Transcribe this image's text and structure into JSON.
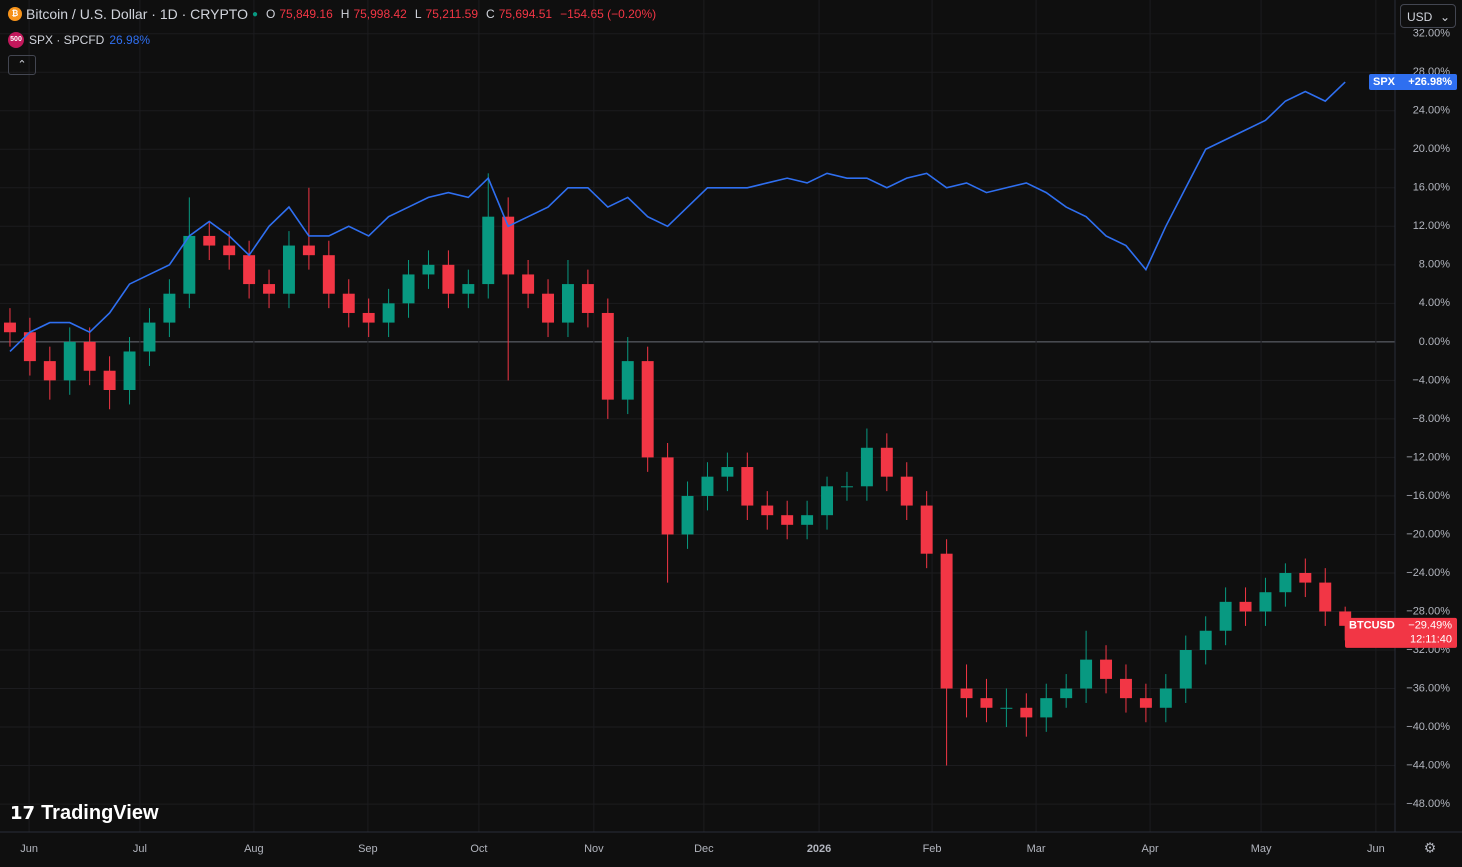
{
  "chart_data": {
    "type": "candlestick",
    "title": "Bitcoin / U.S. Dollar · 1D · CRYPTO",
    "ohlc_labels": {
      "open_key": "O",
      "open": "75,849.16",
      "high_key": "H",
      "high": "75,998.42",
      "low_key": "L",
      "low": "75,211.59",
      "close_key": "C",
      "close": "75,694.51",
      "change": "−154.65 (−0.20%)"
    },
    "symbol_icon": "₿",
    "currency": "USD",
    "brand": "TradingView",
    "countdown": "12:11:40",
    "xlim": [
      -0.5,
      69.5
    ],
    "xticks": [
      {
        "value": 0.96,
        "label": "Jun"
      },
      {
        "value": 6.52,
        "label": "Jul"
      },
      {
        "value": 12.24,
        "label": "Aug"
      },
      {
        "value": 17.96,
        "label": "Sep"
      },
      {
        "value": 23.53,
        "label": "Oct"
      },
      {
        "value": 29.3,
        "label": "Nov"
      },
      {
        "value": 34.82,
        "label": "Dec"
      },
      {
        "value": 40.6,
        "label": "2026"
      },
      {
        "value": 46.27,
        "label": "Feb"
      },
      {
        "value": 51.49,
        "label": "Mar"
      },
      {
        "value": 57.21,
        "label": "Apr"
      },
      {
        "value": 62.78,
        "label": "May"
      },
      {
        "value": 68.54,
        "label": "Jun"
      }
    ],
    "ylim": [
      -50.9,
      35.5
    ],
    "yticks": [
      {
        "value": 32,
        "label": "32.00%"
      },
      {
        "value": 28,
        "label": "28.00%"
      },
      {
        "value": 24,
        "label": "24.00%"
      },
      {
        "value": 20,
        "label": "20.00%"
      },
      {
        "value": 16,
        "label": "16.00%"
      },
      {
        "value": 12,
        "label": "12.00%"
      },
      {
        "value": 8,
        "label": "8.00%"
      },
      {
        "value": 4,
        "label": "4.00%"
      },
      {
        "value": 0,
        "label": "0.00%"
      },
      {
        "value": -4,
        "label": "−4.00%"
      },
      {
        "value": -8,
        "label": "−8.00%"
      },
      {
        "value": -12,
        "label": "−12.00%"
      },
      {
        "value": -16,
        "label": "−16.00%"
      },
      {
        "value": -20,
        "label": "−20.00%"
      },
      {
        "value": -24,
        "label": "−24.00%"
      },
      {
        "value": -28,
        "label": "−28.00%"
      },
      {
        "value": -32,
        "label": "−32.00%"
      },
      {
        "value": -36,
        "label": "−36.00%"
      },
      {
        "value": -40,
        "label": "−40.00%"
      },
      {
        "value": -44,
        "label": "−44.00%"
      },
      {
        "value": -48,
        "label": "−48.00%"
      }
    ],
    "grid": true,
    "candles": {
      "name": "BTCUSD",
      "up_color": "#089981",
      "down_color": "#f23645",
      "open": [
        2,
        1,
        -2,
        -4,
        0,
        -3,
        -5,
        -1,
        2,
        5,
        11,
        10,
        9,
        6,
        5,
        10,
        9,
        5,
        3,
        2,
        4,
        7,
        8,
        5,
        6,
        13,
        7,
        5,
        2,
        6,
        3,
        -6,
        -2,
        -12,
        -20,
        -16,
        -14,
        -13,
        -17,
        -18,
        -19,
        -18,
        -15,
        -15,
        -11,
        -14,
        -17,
        -22,
        -36,
        -37,
        -38,
        -38,
        -39,
        -37,
        -36,
        -33,
        -35,
        -37,
        -38,
        -36,
        -32,
        -30,
        -27,
        -28,
        -26,
        -24,
        -25,
        -28
      ],
      "high": [
        3.5,
        2.5,
        -0.5,
        1.5,
        1.5,
        -1.5,
        0.5,
        3.5,
        6.5,
        15,
        12.5,
        11.5,
        10.5,
        7.5,
        11.5,
        16,
        10.5,
        6.5,
        4.5,
        5.5,
        8.5,
        9.5,
        9.5,
        7.5,
        17.5,
        15,
        8.5,
        6.5,
        8.5,
        7.5,
        4.5,
        0.5,
        -0.5,
        -10.5,
        -14.5,
        -12.5,
        -11.5,
        -11.5,
        -15.5,
        -16.5,
        -16.5,
        -14,
        -13.5,
        -9,
        -9.5,
        -12.5,
        -15.5,
        -20.5,
        -33.5,
        -35,
        -36,
        -36.5,
        -35.5,
        -34.5,
        -30,
        -31.5,
        -33.5,
        -35.5,
        -34.5,
        -30.5,
        -28.5,
        -25.5,
        -25.5,
        -24.5,
        -23,
        -22.5,
        -23.5,
        -27.5
      ],
      "low": [
        -0.5,
        -3.5,
        -6,
        -5.5,
        -4.5,
        -7,
        -6.5,
        -2.5,
        0.5,
        3.5,
        8.5,
        7.5,
        4.5,
        3.5,
        3.5,
        7.5,
        3.5,
        1.5,
        0.5,
        0.5,
        2.5,
        5.5,
        3.5,
        3.5,
        4.5,
        -4,
        3.5,
        0.5,
        0.5,
        1.5,
        -8,
        -7.5,
        -13.5,
        -25,
        -21.5,
        -17.5,
        -15.5,
        -18.5,
        -19.5,
        -20.5,
        -20.5,
        -19.5,
        -16.5,
        -16.5,
        -15.5,
        -18.5,
        -23.5,
        -44,
        -39,
        -39.5,
        -40,
        -41,
        -40.5,
        -38,
        -37.5,
        -36.5,
        -38.5,
        -39.5,
        -39.5,
        -37.5,
        -33.5,
        -31.5,
        -29.5,
        -29.5,
        -27.5,
        -26.5,
        -29.5,
        -31
      ],
      "close": [
        1,
        -2,
        -4,
        0,
        -3,
        -5,
        -1,
        2,
        5,
        11,
        10,
        9,
        6,
        5,
        10,
        9,
        5,
        3,
        2,
        4,
        7,
        8,
        5,
        6,
        13,
        7,
        5,
        2,
        6,
        3,
        -6,
        -2,
        -12,
        -20,
        -16,
        -14,
        -13,
        -17,
        -18,
        -19,
        -18,
        -15,
        -15,
        -11,
        -14,
        -17,
        -22,
        -36,
        -37,
        -38,
        -38,
        -39,
        -37,
        -36,
        -33,
        -35,
        -37,
        -38,
        -36,
        -32,
        -30,
        -27,
        -28,
        -26,
        -24,
        -25,
        -28,
        -29.49
      ],
      "last_label": "−29.49%"
    },
    "series": [
      {
        "name": "SPX · SPCFD",
        "short_name": "SPX",
        "icon": "500",
        "color": "#2f6ff0",
        "legend_value": "26.98%",
        "values": [
          -1,
          1,
          2,
          2,
          1,
          3,
          6,
          7,
          8,
          11,
          12.5,
          11,
          9,
          12,
          14,
          11,
          11,
          12,
          11,
          13,
          14,
          15,
          15.5,
          15,
          17,
          12,
          13,
          14,
          16,
          16,
          14,
          15,
          13,
          12,
          14,
          16,
          16,
          16,
          16.5,
          17,
          16.5,
          17.5,
          17,
          17,
          16,
          17,
          17.5,
          16,
          16.5,
          15.5,
          16,
          16.5,
          15.5,
          14,
          13,
          11,
          10,
          7.5,
          12,
          16,
          20,
          21,
          22,
          23,
          25,
          26,
          25,
          26.98
        ],
        "last_label": "+26.98%"
      }
    ]
  }
}
